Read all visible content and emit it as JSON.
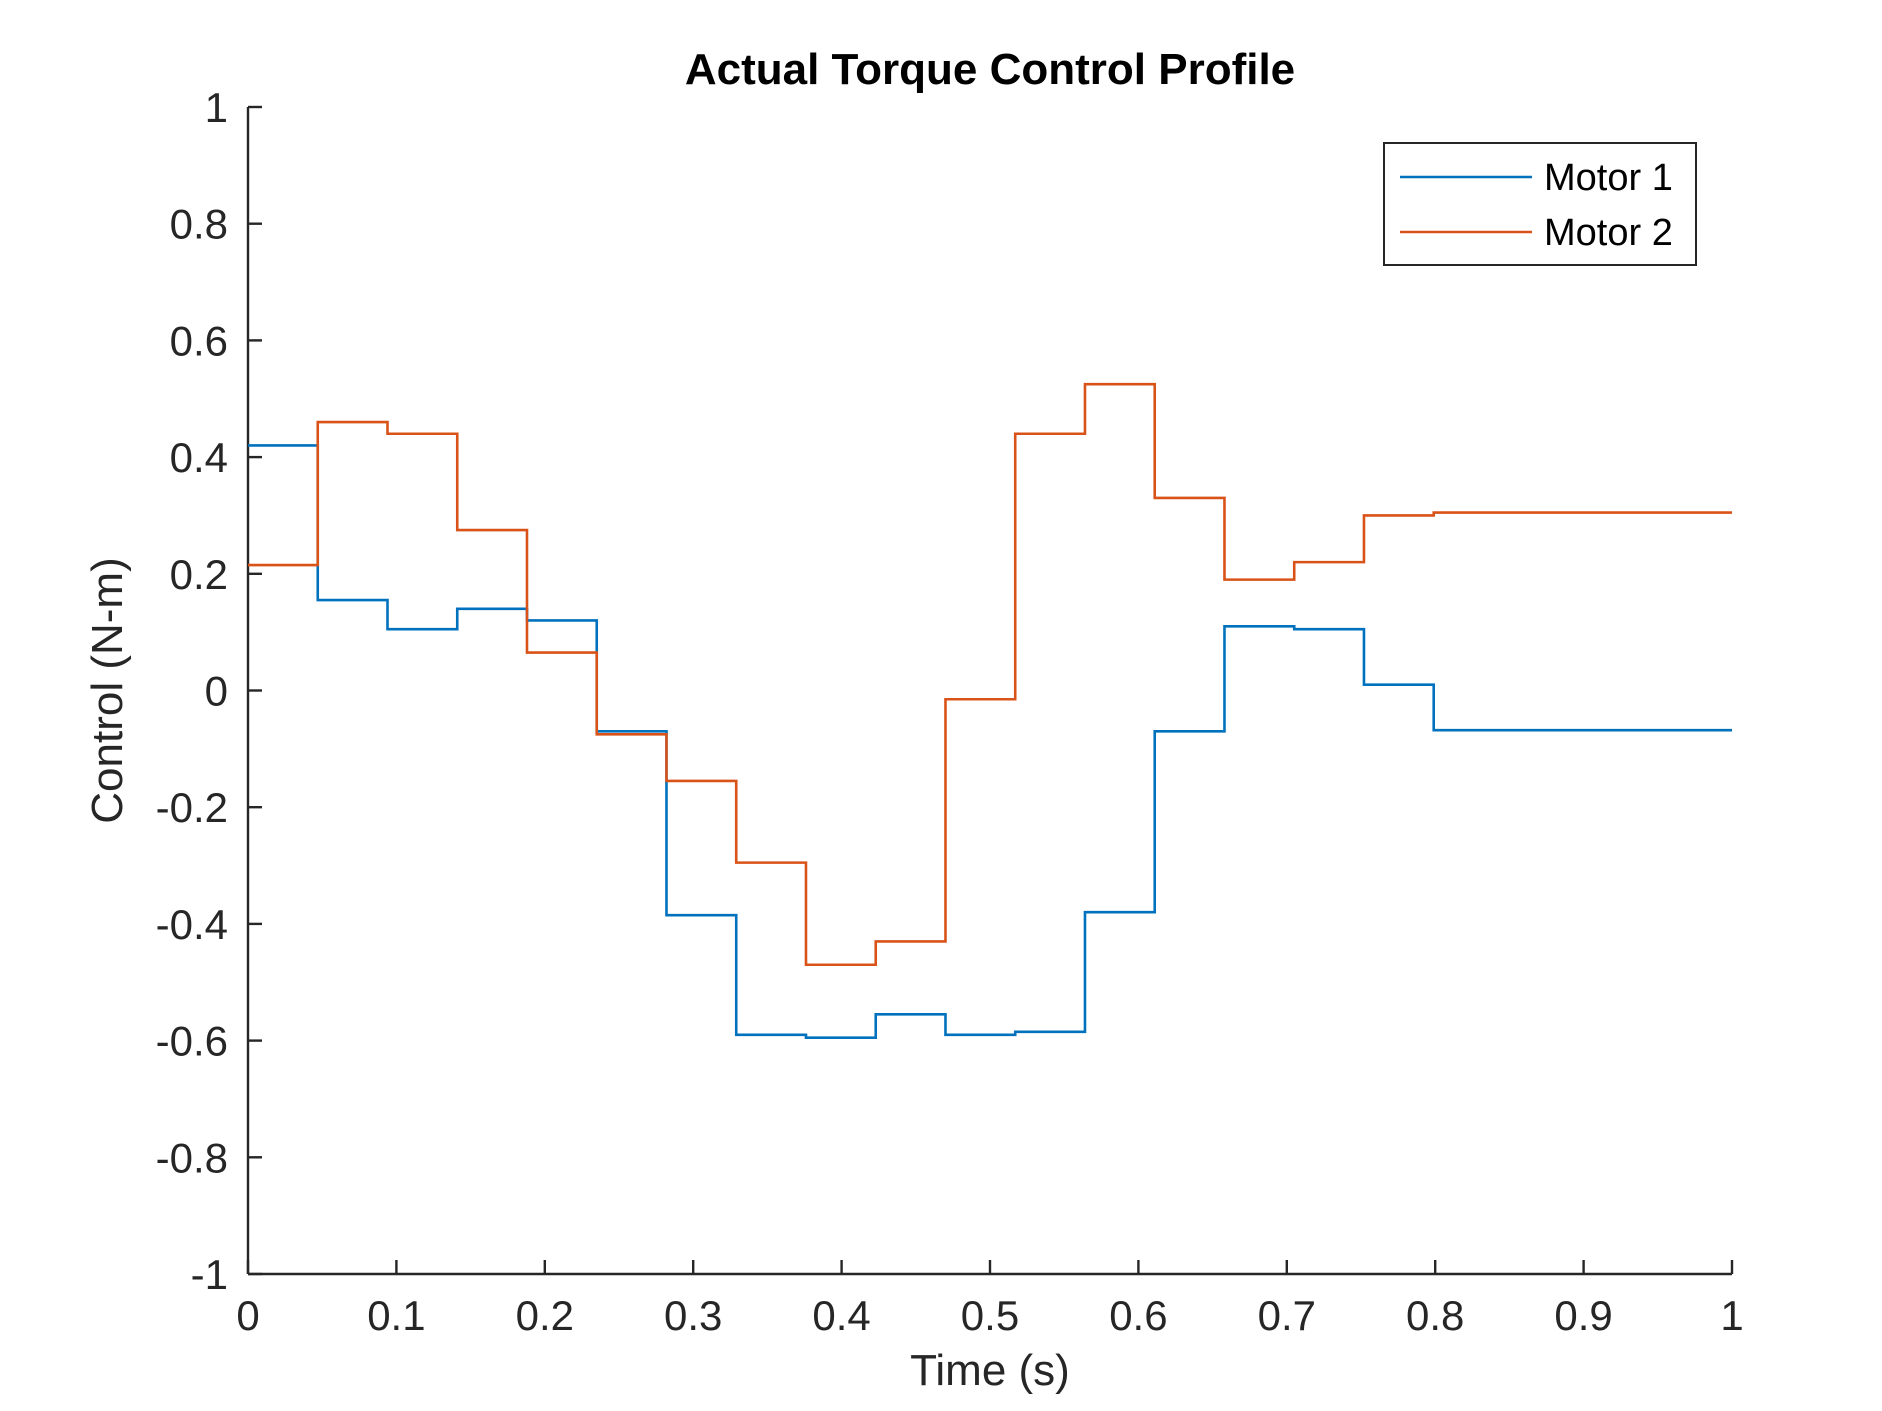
{
  "chart_data": {
    "type": "line",
    "step": true,
    "title": "Actual Torque Control Profile",
    "xlabel": "Time (s)",
    "ylabel": "Control (N-m)",
    "xlim": [
      0,
      1
    ],
    "ylim": [
      -1,
      1
    ],
    "xticks": [
      "0",
      "0.1",
      "0.2",
      "0.3",
      "0.4",
      "0.5",
      "0.6",
      "0.7",
      "0.8",
      "0.9",
      "1"
    ],
    "yticks": [
      "1",
      "0.8",
      "0.6",
      "0.4",
      "0.2",
      "0",
      "-0.2",
      "-0.4",
      "-0.6",
      "-0.8",
      "-1"
    ],
    "grid": false,
    "legend_position": "top-right",
    "series": [
      {
        "name": "Motor 1",
        "color": "#0072BD",
        "x": [
          0,
          0.047,
          0.094,
          0.141,
          0.188,
          0.235,
          0.282,
          0.329,
          0.376,
          0.423,
          0.47,
          0.517,
          0.564,
          0.611,
          0.658,
          0.705,
          0.752,
          0.799,
          1.0
        ],
        "y": [
          0.42,
          0.155,
          0.105,
          0.14,
          0.12,
          -0.07,
          -0.385,
          -0.59,
          -0.595,
          -0.555,
          -0.59,
          -0.585,
          -0.38,
          -0.07,
          0.11,
          0.105,
          0.01,
          -0.068,
          -0.068
        ]
      },
      {
        "name": "Motor 2",
        "color": "#D95319",
        "x": [
          0,
          0.047,
          0.094,
          0.141,
          0.188,
          0.235,
          0.282,
          0.329,
          0.376,
          0.423,
          0.47,
          0.517,
          0.564,
          0.611,
          0.658,
          0.705,
          0.752,
          0.799,
          1.0
        ],
        "y": [
          0.215,
          0.46,
          0.44,
          0.275,
          0.065,
          -0.075,
          -0.155,
          -0.295,
          -0.47,
          -0.43,
          -0.015,
          0.44,
          0.525,
          0.33,
          0.19,
          0.22,
          0.3,
          0.305,
          0.305
        ]
      }
    ]
  }
}
